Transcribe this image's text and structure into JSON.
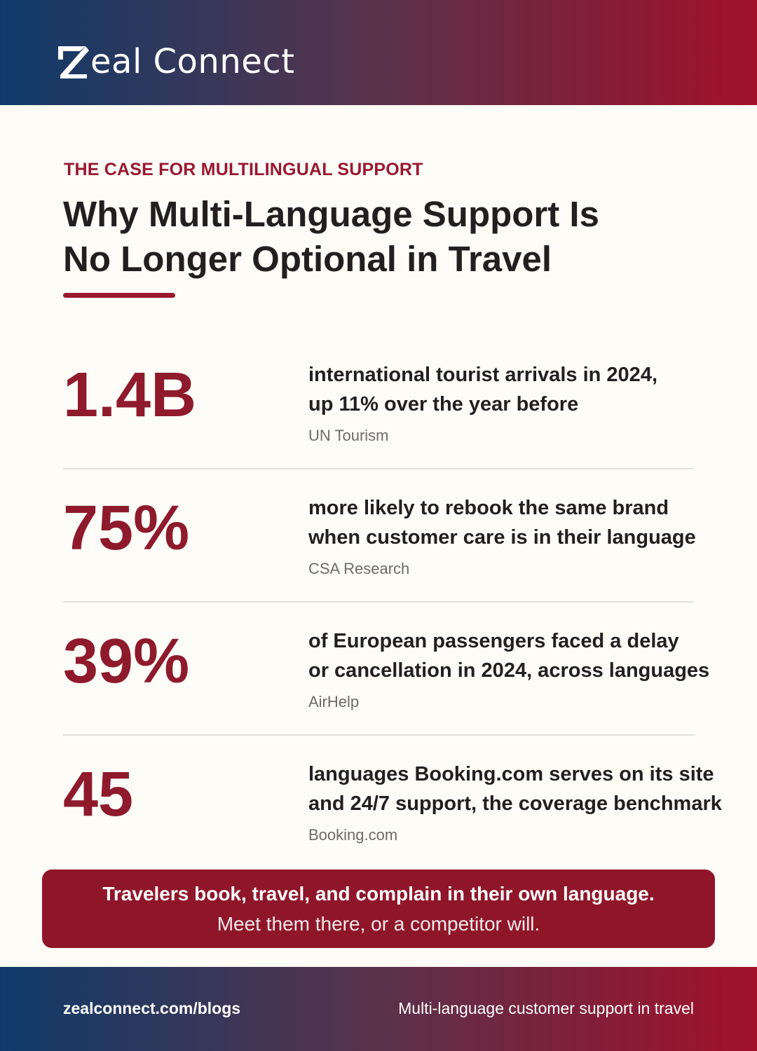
{
  "header": {
    "logo_text": "eal Connect",
    "logo_letter": "Z"
  },
  "hero": {
    "eyebrow": "THE CASE FOR MULTILINGUAL SUPPORT",
    "title_lines": [
      "Why Multi-Language Support Is",
      "No Longer Optional in Travel"
    ]
  },
  "stats": [
    {
      "value": "1.4B",
      "desc_lines": [
        "international tourist arrivals in 2024,",
        "up 11% over the year before"
      ],
      "source": "UN Tourism"
    },
    {
      "value": "75%",
      "desc_lines": [
        "more likely to rebook the same brand",
        "when customer care is in their language"
      ],
      "source": "CSA Research"
    },
    {
      "value": "39%",
      "desc_lines": [
        "of European passengers faced a delay",
        "or cancellation in 2024, across languages"
      ],
      "source": "AirHelp"
    },
    {
      "value": "45",
      "desc_lines": [
        "languages Booking.com serves on its site",
        "and 24/7 support, the coverage benchmark"
      ],
      "source": "Booking.com"
    }
  ],
  "callout": {
    "bold": "Travelers book, travel, and complain in their own language.",
    "light": "Meet them there, or a competitor will."
  },
  "footer": {
    "link": "zealconnect.com/blogs",
    "tagline": "Multi-language customer support in travel"
  },
  "colors": {
    "accent": "#8e1a2c",
    "gradient_start": "#0f3b6a",
    "gradient_end": "#a2112a",
    "background": "#fdfcf7"
  }
}
